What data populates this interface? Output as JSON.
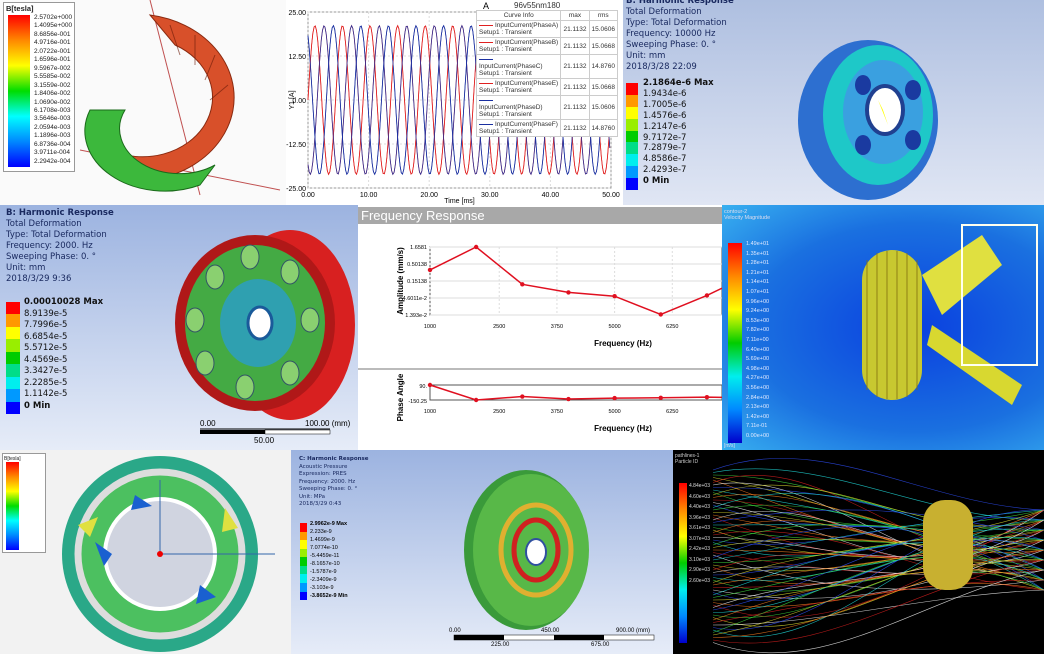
{
  "panel1": {
    "legend_title": "B[tesla]",
    "legend_values": [
      "2.5702e+000",
      "1.4095e+000",
      "8.6856e-001",
      "4.9716e-001",
      "2.0722e-001",
      "1.6596e-001",
      "9.5967e-002",
      "5.5585e-002",
      "3.1559e-002",
      "1.8406e-002",
      "1.0690e-002",
      "6.1708e-003",
      "3.5646e-003",
      "2.0594e-003",
      "1.1896e-003",
      "6.8736e-004",
      "3.9711e-004",
      "2.2942e-004"
    ]
  },
  "panel2": {
    "title": "A",
    "tag": "96v55nm180",
    "curve_info_header": [
      "Curve Info",
      "max",
      "rms"
    ],
    "curves": [
      {
        "name": "InputCurrent(PhaseA)",
        "setup": "Setup1 : Transient",
        "max": "21.1132",
        "rms": "15.0606",
        "color": "#e02020"
      },
      {
        "name": "InputCurrent(PhaseB)",
        "setup": "Setup1 : Transient",
        "max": "21.1132",
        "rms": "15.0668",
        "color": "#e02020"
      },
      {
        "name": "InputCurrent(PhaseC)",
        "setup": "Setup1 : Transient",
        "max": "21.1132",
        "rms": "14.8760",
        "color": "#1a2fa0"
      },
      {
        "name": "InputCurrent(PhaseE)",
        "setup": "Setup1 : Transient",
        "max": "21.1132",
        "rms": "15.0668",
        "color": "#e02020"
      },
      {
        "name": "InputCurrent(PhaseD)",
        "setup": "Setup1 : Transient",
        "max": "21.1132",
        "rms": "15.0606",
        "color": "#1a2fa0"
      },
      {
        "name": "InputCurrent(PhaseF)",
        "setup": "Setup1 : Transient",
        "max": "21.1132",
        "rms": "14.8760",
        "color": "#1a2fa0"
      }
    ]
  },
  "panel3": {
    "lines": [
      "B: Harmonic Response",
      "Total Deformation",
      "Type: Total Deformation",
      "Frequency: 10000 Hz",
      "Sweeping Phase: 0. °",
      "Unit: mm",
      "2018/3/28 22:09"
    ],
    "legend": [
      "2.1864e-6 Max",
      "1.9434e-6",
      "1.7005e-6",
      "1.4576e-6",
      "1.2147e-6",
      "9.7172e-7",
      "7.2879e-7",
      "4.8586e-7",
      "2.4293e-7",
      "0 Min"
    ]
  },
  "panel4": {
    "lines": [
      "B: Harmonic Response",
      "Total Deformation",
      "Type: Total Deformation",
      "Frequency: 2000. Hz",
      "Sweeping Phase: 0. °",
      "Unit: mm",
      "2018/3/29 9:36"
    ],
    "legend": [
      "0.00010028 Max",
      "8.9139e-5",
      "7.7996e-5",
      "6.6854e-5",
      "5.5712e-5",
      "4.4569e-5",
      "3.3427e-5",
      "2.2285e-5",
      "1.1142e-5",
      "0 Min"
    ],
    "scale": [
      "0.00",
      "50.00",
      "100.00 (mm)"
    ]
  },
  "panel5": {
    "header": "Frequency Response"
  },
  "panel6": {
    "legend_title": [
      "contour-2",
      "Velocity Magnitude"
    ],
    "legend": [
      "1.49e+01",
      "1.35e+01",
      "1.28e+01",
      "1.21e+01",
      "1.14e+01",
      "1.07e+01",
      "9.96e+00",
      "9.24e+00",
      "8.53e+00",
      "7.82e+00",
      "7.11e+00",
      "6.40e+00",
      "5.69e+00",
      "4.98e+00",
      "4.27e+00",
      "3.56e+00",
      "2.84e+00",
      "2.13e+00",
      "1.42e+00",
      "7.11e-01",
      "0.00e+00"
    ],
    "unit": "[m/s]"
  },
  "panel7": {
    "legend_title": "B[tesla]",
    "legend_count": 18
  },
  "panel8": {
    "lines": [
      "C: Harmonic Response",
      "Acoustic Pressure",
      "Expression: PRES",
      "Frequency: 2000. Hz",
      "Sweeping Phase: 0. °",
      "Unit: MPa",
      "2018/3/29 0:43"
    ],
    "legend": [
      "2.9962e-9 Max",
      "2.233e-9",
      "1.4699e-9",
      "7.0774e-10",
      "-5.4459e-11",
      "-8.1657e-10",
      "-1.5787e-9",
      "-2.3409e-9",
      "-3.103e-9",
      "-3.8652e-9 Min"
    ],
    "scale": [
      "0.00",
      "225.00",
      "450.00",
      "675.00",
      "900.00 (mm)"
    ]
  },
  "panel9": {
    "legend_title": [
      "pathlines-1",
      "Particle ID"
    ],
    "legend": [
      "4.84e+03",
      "4.60e+03",
      "4.40e+03",
      "3.96e+03",
      "3.61e+03",
      "3.07e+03",
      "2.42e+03",
      "3.10e+03",
      "2.90e+03",
      "2.60e+03"
    ]
  },
  "chart_data": [
    {
      "type": "line",
      "title": "A",
      "xlabel": "Time [ms]",
      "ylabel": "Y1 [A]",
      "xlim": [
        0,
        50
      ],
      "ylim": [
        -25,
        25
      ],
      "xticks": [
        "0.00",
        "10.00",
        "20.00",
        "30.00",
        "40.00",
        "50.00"
      ],
      "yticks": [
        "25.00",
        "12.50",
        "0.00",
        "-12.50",
        "-25.00"
      ],
      "series_form": "sinusoid",
      "amplitude": 21.1132,
      "period_ms": 4.55,
      "phases_deg": [
        0,
        120,
        240,
        0,
        120,
        240
      ],
      "grid": true,
      "legend": "top-right"
    },
    {
      "type": "line",
      "title": "Frequency Response",
      "xlabel": "Frequency (Hz)",
      "ylabel": "Amplitude (mm/s)",
      "yscale": "log",
      "xticks": [
        "1000",
        "2500",
        "3750",
        "5000",
        "6250",
        "7500"
      ],
      "yticks": [
        "1.6581",
        "0.50138",
        "0.15138",
        "4.6011e-2",
        "1.393e-2"
      ],
      "x": [
        1000,
        2000,
        3000,
        4000,
        5000,
        6000,
        7000,
        7500
      ],
      "values": [
        0.33,
        1.6581,
        0.12,
        0.068,
        0.052,
        0.0145,
        0.055,
        0.12
      ],
      "grid": true
    },
    {
      "type": "line",
      "xlabel": "Frequency (Hz)",
      "ylabel": "Phase Angle",
      "ylim": [
        -150.25,
        90
      ],
      "xticks": [
        "1000",
        "2500",
        "3750",
        "5000",
        "6250",
        "7500"
      ],
      "yticks": [
        "90.",
        "-150.25"
      ],
      "x": [
        1000,
        2000,
        3000,
        4000,
        5000,
        6000,
        7000,
        7500
      ],
      "values": [
        90,
        -150.25,
        -95,
        -135,
        -120,
        -115,
        -105,
        -110
      ]
    }
  ]
}
